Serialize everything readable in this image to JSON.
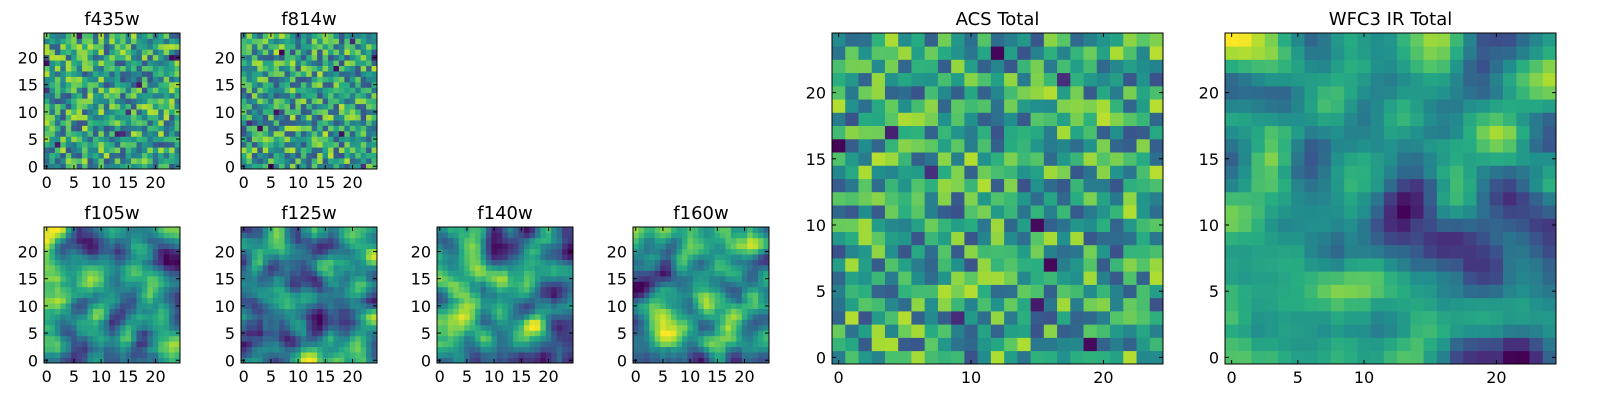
{
  "chart_data": [
    {
      "type": "heatmap",
      "title": "f435w",
      "xlim": [
        -0.5,
        24.5
      ],
      "ylim": [
        -0.5,
        24.5
      ],
      "xticks": [
        0,
        5,
        10,
        15,
        20
      ],
      "yticks": [
        0,
        5,
        10,
        15,
        20
      ],
      "grid": false,
      "colormap": "viridis",
      "texture": "noisy",
      "seed": 11
    },
    {
      "type": "heatmap",
      "title": "f814w",
      "xlim": [
        -0.5,
        24.5
      ],
      "ylim": [
        -0.5,
        24.5
      ],
      "xticks": [
        0,
        5,
        10,
        15,
        20
      ],
      "yticks": [
        0,
        5,
        10,
        15,
        20
      ],
      "grid": false,
      "colormap": "viridis",
      "texture": "noisy",
      "seed": 23
    },
    {
      "type": "heatmap",
      "title": "f105w",
      "xlim": [
        -0.5,
        24.5
      ],
      "ylim": [
        -0.5,
        24.5
      ],
      "xticks": [
        0,
        5,
        10,
        15,
        20
      ],
      "yticks": [
        0,
        5,
        10,
        15,
        20
      ],
      "grid": false,
      "colormap": "viridis",
      "texture": "smooth",
      "seed": 37
    },
    {
      "type": "heatmap",
      "title": "f125w",
      "xlim": [
        -0.5,
        24.5
      ],
      "ylim": [
        -0.5,
        24.5
      ],
      "xticks": [
        0,
        5,
        10,
        15,
        20
      ],
      "yticks": [
        0,
        5,
        10,
        15,
        20
      ],
      "grid": false,
      "colormap": "viridis",
      "texture": "smooth",
      "seed": 41
    },
    {
      "type": "heatmap",
      "title": "f140w",
      "xlim": [
        -0.5,
        24.5
      ],
      "ylim": [
        -0.5,
        24.5
      ],
      "xticks": [
        0,
        5,
        10,
        15,
        20
      ],
      "yticks": [
        0,
        5,
        10,
        15,
        20
      ],
      "grid": false,
      "colormap": "viridis",
      "texture": "smooth",
      "seed": 53
    },
    {
      "type": "heatmap",
      "title": "f160w",
      "xlim": [
        -0.5,
        24.5
      ],
      "ylim": [
        -0.5,
        24.5
      ],
      "xticks": [
        0,
        5,
        10,
        15,
        20
      ],
      "yticks": [
        0,
        5,
        10,
        15,
        20
      ],
      "grid": false,
      "colormap": "viridis",
      "texture": "smooth",
      "seed": 67
    },
    {
      "type": "heatmap",
      "title": "ACS Total",
      "xlim": [
        -0.5,
        24.5
      ],
      "ylim": [
        -0.5,
        24.5
      ],
      "xticks": [
        0,
        10,
        20
      ],
      "yticks": [
        0,
        5,
        10,
        15,
        20
      ],
      "grid": false,
      "colormap": "viridis",
      "texture": "noisy",
      "seed": 71
    },
    {
      "type": "heatmap",
      "title": "WFC3 IR Total",
      "xlim": [
        -0.5,
        24.5
      ],
      "ylim": [
        -0.5,
        24.5
      ],
      "xticks": [
        0,
        5,
        10,
        20
      ],
      "yticks": [
        0,
        5,
        10,
        15,
        20
      ],
      "grid": false,
      "colormap": "viridis",
      "texture": "smooth",
      "seed": 83
    }
  ]
}
